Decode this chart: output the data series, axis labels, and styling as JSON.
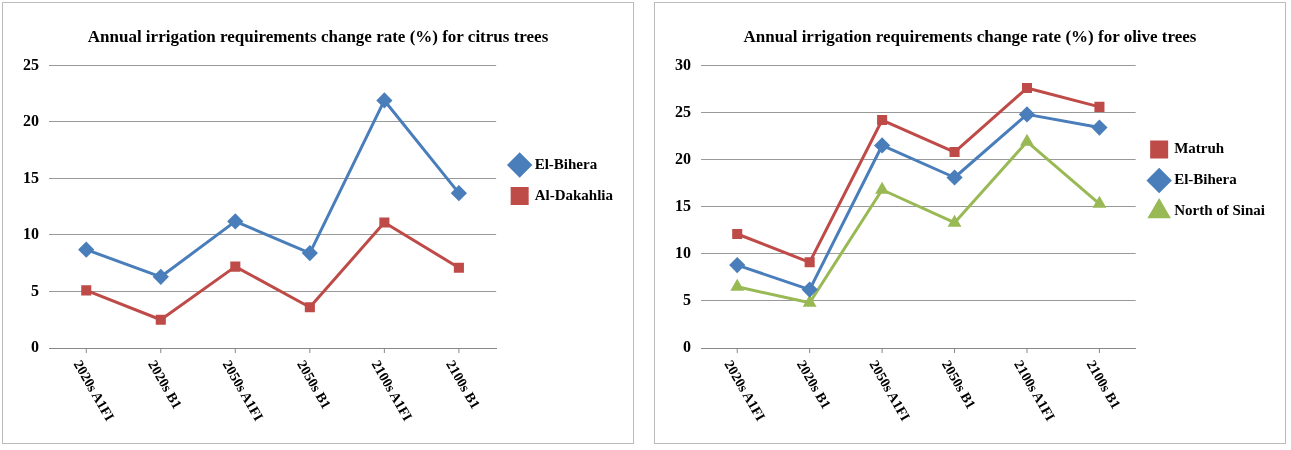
{
  "chart_data": [
    {
      "type": "line",
      "title": "Annual irrigation requirements change rate (%) for citrus trees",
      "categories": [
        "2020s A1FI",
        "2020s B1",
        "2050s A1FI",
        "2050s B1",
        "2100s A1FI",
        "2100s B1"
      ],
      "series": [
        {
          "name": "El-Bihera",
          "color": "#4a7ebb",
          "marker": "diamond",
          "values": [
            8.7,
            6.3,
            11.2,
            8.4,
            21.9,
            13.7
          ]
        },
        {
          "name": "Al-Dakahlia",
          "color": "#be4b48",
          "marker": "square",
          "values": [
            5.1,
            2.5,
            7.2,
            3.6,
            11.1,
            7.1
          ]
        }
      ],
      "ylim": [
        0,
        25
      ],
      "yticks": [
        0,
        5,
        10,
        15,
        20,
        25
      ],
      "grid": "y",
      "legend": "right"
    },
    {
      "type": "line",
      "title": "Annual irrigation requirements change rate (%) for olive trees",
      "categories": [
        "2020s A1FI",
        "2020s B1",
        "2050s A1FI",
        "2050s B1",
        "2100s A1FI",
        "2100s B1"
      ],
      "series": [
        {
          "name": "Matruh",
          "color": "#be4b48",
          "marker": "square",
          "values": [
            12.1,
            9.1,
            24.2,
            20.8,
            27.6,
            25.6
          ]
        },
        {
          "name": "El-Bihera",
          "color": "#4a7ebb",
          "marker": "diamond",
          "values": [
            8.8,
            6.2,
            21.5,
            18.1,
            24.8,
            23.4
          ]
        },
        {
          "name": "North of Sinai",
          "color": "#98b954",
          "marker": "triangle",
          "values": [
            6.5,
            4.8,
            16.8,
            13.3,
            21.9,
            15.3
          ]
        }
      ],
      "ylim": [
        0,
        30
      ],
      "yticks": [
        0,
        5,
        10,
        15,
        20,
        25,
        30
      ],
      "grid": "y",
      "legend": "right"
    }
  ]
}
